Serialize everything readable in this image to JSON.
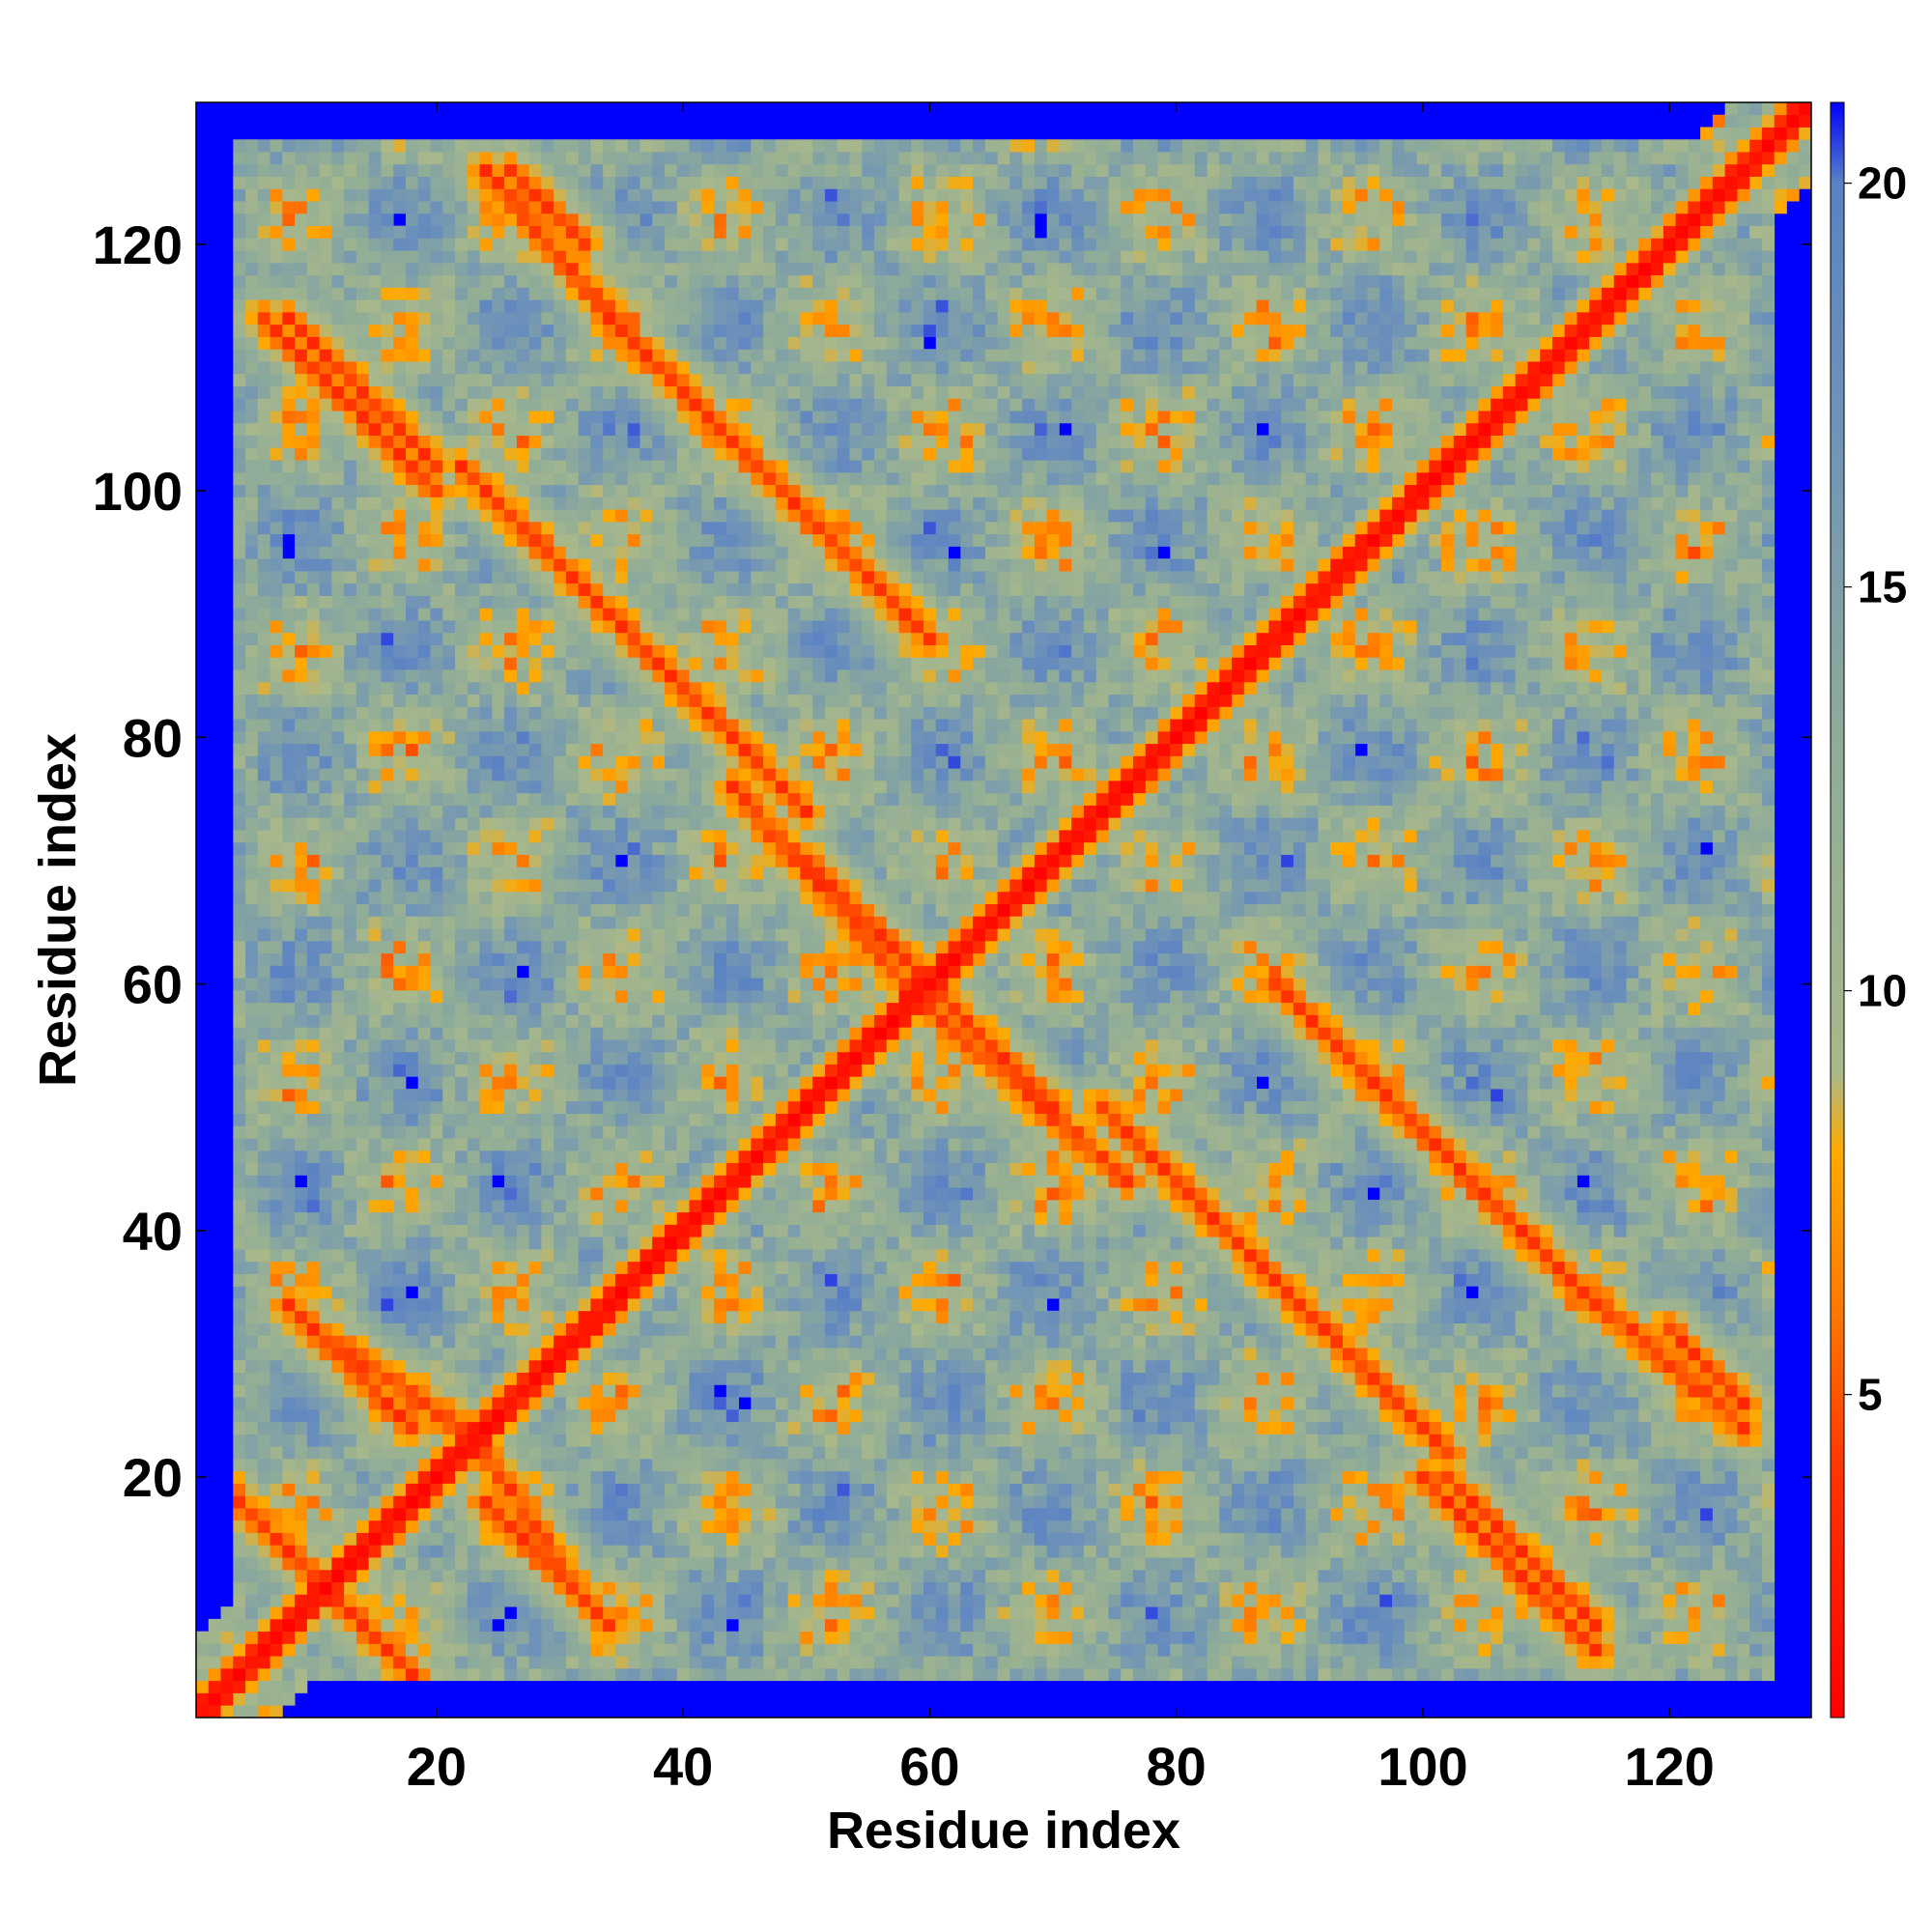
{
  "chart_data": {
    "type": "heatmap",
    "title": "",
    "xlabel": "Residue index",
    "ylabel": "Residue index",
    "n_residues": 131,
    "xlim": [
      1,
      131
    ],
    "ylim": [
      1,
      131
    ],
    "x_ticks": [
      20,
      40,
      60,
      80,
      100,
      120
    ],
    "y_ticks": [
      20,
      40,
      60,
      80,
      100,
      120
    ],
    "colorbar": {
      "ticks": [
        5,
        10,
        15,
        20
      ],
      "vmin": 1,
      "vmax": 21,
      "placement": "right",
      "stops": [
        {
          "value": 1,
          "color": "#ff0000"
        },
        {
          "value": 4,
          "color": "#ff3300"
        },
        {
          "value": 6,
          "color": "#ff7700"
        },
        {
          "value": 8,
          "color": "#ffaa00"
        },
        {
          "value": 9,
          "color": "#a9b88a"
        },
        {
          "value": 13,
          "color": "#8fac98"
        },
        {
          "value": 17,
          "color": "#6f93b8"
        },
        {
          "value": 20,
          "color": "#5a82c4"
        },
        {
          "value": 21,
          "color": "#0000ff"
        }
      ]
    },
    "grid": false,
    "description_of_bands": {
      "main_diagonal": "distance ~1-4 along i=j",
      "antiparallel_pairs": [
        {
          "i_start": 2,
          "j_start": 20,
          "i_end": 10,
          "j_end": 12
        },
        {
          "i_start": 24,
          "j_start": 18,
          "i_end": 34,
          "j_end": 8
        },
        {
          "i_start": 10,
          "j_start": 32,
          "i_end": 22,
          "j_end": 24
        },
        {
          "i_start": 8,
          "j_start": 114,
          "i_end": 20,
          "j_end": 102
        },
        {
          "i_start": 22,
          "j_start": 102,
          "i_end": 32,
          "j_end": 92
        },
        {
          "i_start": 34,
          "j_start": 90,
          "i_end": 50,
          "j_end": 74
        },
        {
          "i_start": 50,
          "j_start": 70,
          "i_end": 60,
          "j_end": 60
        },
        {
          "i_start": 26,
          "j_start": 126,
          "i_end": 32,
          "j_end": 120
        },
        {
          "i_start": 34,
          "j_start": 114,
          "i_end": 60,
          "j_end": 88
        },
        {
          "i_start": 60,
          "j_start": 58,
          "i_end": 76,
          "j_end": 44
        },
        {
          "i_start": 74,
          "j_start": 50,
          "i_end": 96,
          "j_end": 28
        },
        {
          "i_start": 90,
          "j_start": 58,
          "i_end": 112,
          "j_end": 36
        },
        {
          "i_start": 100,
          "j_start": 20,
          "i_end": 114,
          "j_end": 6
        },
        {
          "i_start": 112,
          "j_start": 36,
          "i_end": 126,
          "j_end": 24
        }
      ]
    }
  }
}
